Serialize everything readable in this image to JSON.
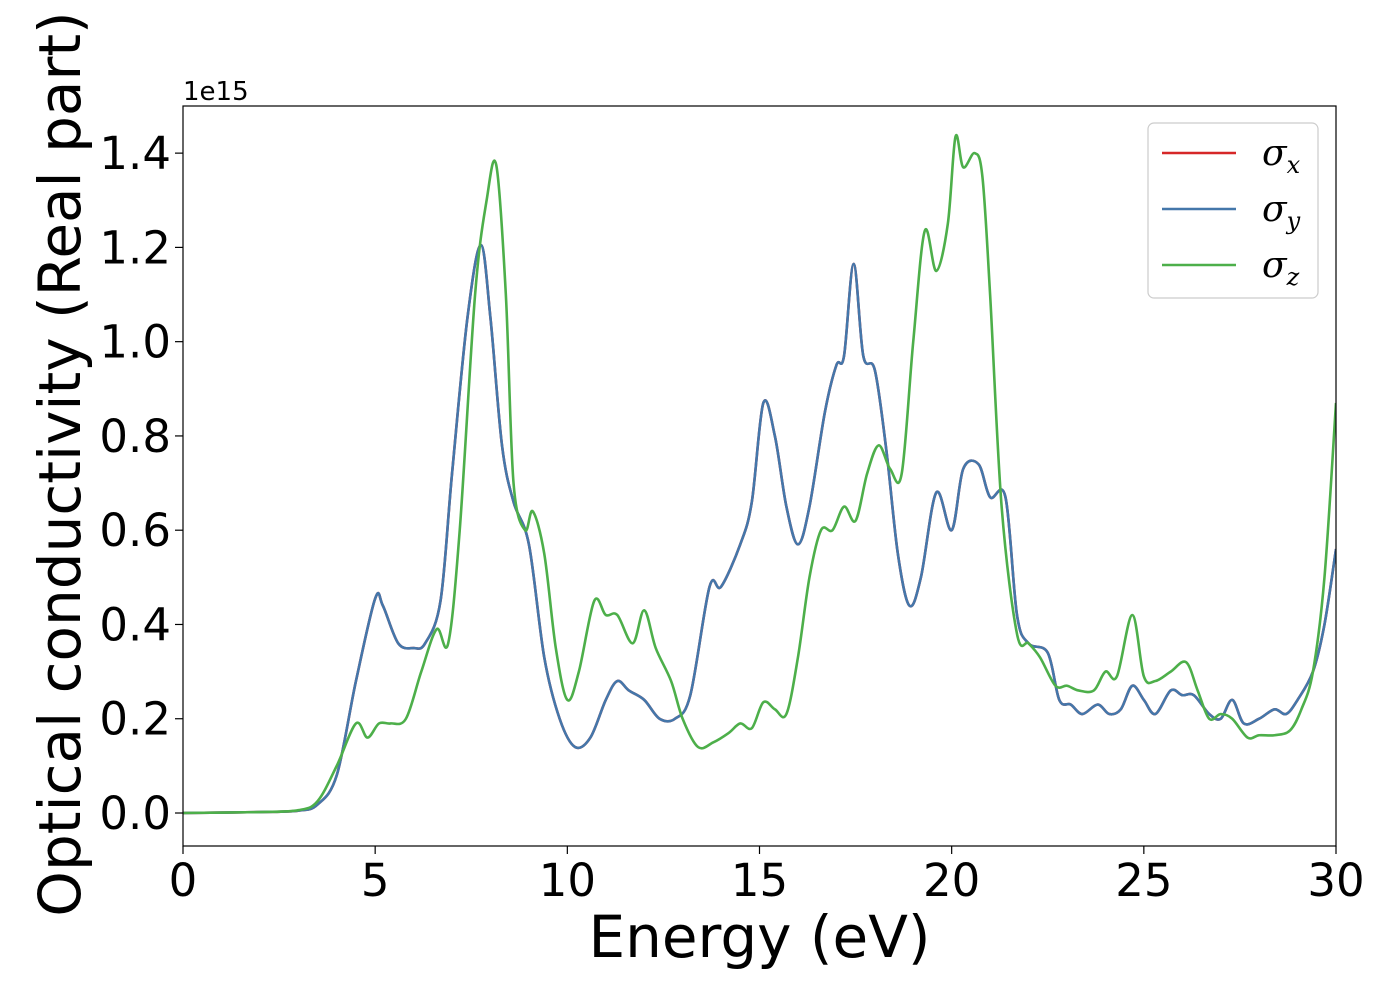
{
  "chart_data": {
    "type": "line",
    "title": "",
    "xlabel": "Energy (eV)",
    "ylabel": "Optical conductivity (Real part)",
    "y_offset_label": "1e15",
    "xlim": [
      0,
      30
    ],
    "ylim": [
      -0.07,
      1.5
    ],
    "xticks": [
      0,
      5,
      10,
      15,
      20,
      25,
      30
    ],
    "yticks": [
      0.0,
      0.2,
      0.4,
      0.6,
      0.8,
      1.0,
      1.2,
      1.4
    ],
    "xtick_labels": [
      "0",
      "5",
      "10",
      "15",
      "20",
      "25",
      "30"
    ],
    "ytick_labels": [
      "0.0",
      "0.2",
      "0.4",
      "0.6",
      "0.8",
      "1.0",
      "1.2",
      "1.4"
    ],
    "grid": false,
    "legend_position": "top-right",
    "series": [
      {
        "name": "σx",
        "symbol": "σ",
        "subscript": "x",
        "color": "#d62728",
        "x": [
          0,
          2,
          3,
          3.5,
          4.0,
          4.5,
          5.0,
          5.2,
          5.6,
          6.0,
          6.3,
          6.7,
          7.0,
          7.4,
          7.75,
          8.0,
          8.3,
          8.6,
          9.0,
          9.4,
          9.8,
          10.2,
          10.6,
          11.0,
          11.3,
          11.6,
          12.0,
          12.4,
          12.8,
          13.2,
          13.7,
          14.0,
          14.5,
          14.8,
          15.1,
          15.4,
          15.7,
          16.0,
          16.3,
          16.7,
          17.0,
          17.2,
          17.45,
          17.7,
          18.0,
          18.3,
          18.6,
          18.9,
          19.2,
          19.6,
          20.0,
          20.3,
          20.7,
          21.0,
          21.4,
          21.7,
          22.0,
          22.5,
          22.8,
          23.1,
          23.4,
          23.8,
          24.1,
          24.4,
          24.7,
          25.0,
          25.3,
          25.7,
          26.0,
          26.3,
          26.7,
          27.0,
          27.3,
          27.6,
          28.0,
          28.4,
          28.7,
          29.0,
          29.4,
          29.7,
          30.0
        ],
        "y": [
          0,
          0.002,
          0.005,
          0.018,
          0.08,
          0.28,
          0.455,
          0.44,
          0.36,
          0.35,
          0.36,
          0.45,
          0.72,
          1.05,
          1.205,
          1.05,
          0.78,
          0.66,
          0.57,
          0.33,
          0.2,
          0.14,
          0.16,
          0.24,
          0.28,
          0.26,
          0.24,
          0.2,
          0.2,
          0.25,
          0.48,
          0.48,
          0.57,
          0.66,
          0.87,
          0.8,
          0.65,
          0.57,
          0.65,
          0.85,
          0.95,
          0.97,
          1.165,
          0.97,
          0.94,
          0.77,
          0.55,
          0.44,
          0.5,
          0.68,
          0.6,
          0.73,
          0.74,
          0.67,
          0.67,
          0.42,
          0.36,
          0.34,
          0.24,
          0.23,
          0.21,
          0.23,
          0.21,
          0.22,
          0.27,
          0.24,
          0.21,
          0.26,
          0.25,
          0.25,
          0.21,
          0.2,
          0.24,
          0.19,
          0.2,
          0.22,
          0.21,
          0.24,
          0.3,
          0.4,
          0.56
        ]
      },
      {
        "name": "σy",
        "symbol": "σ",
        "subscript": "y",
        "color": "#4477aa",
        "x": [
          0,
          2,
          3,
          3.5,
          4.0,
          4.5,
          5.0,
          5.2,
          5.6,
          6.0,
          6.3,
          6.7,
          7.0,
          7.4,
          7.75,
          8.0,
          8.3,
          8.6,
          9.0,
          9.4,
          9.8,
          10.2,
          10.6,
          11.0,
          11.3,
          11.6,
          12.0,
          12.4,
          12.8,
          13.2,
          13.7,
          14.0,
          14.5,
          14.8,
          15.1,
          15.4,
          15.7,
          16.0,
          16.3,
          16.7,
          17.0,
          17.2,
          17.45,
          17.7,
          18.0,
          18.3,
          18.6,
          18.9,
          19.2,
          19.6,
          20.0,
          20.3,
          20.7,
          21.0,
          21.4,
          21.7,
          22.0,
          22.5,
          22.8,
          23.1,
          23.4,
          23.8,
          24.1,
          24.4,
          24.7,
          25.0,
          25.3,
          25.7,
          26.0,
          26.3,
          26.7,
          27.0,
          27.3,
          27.6,
          28.0,
          28.4,
          28.7,
          29.0,
          29.4,
          29.7,
          30.0
        ],
        "y": [
          0,
          0.002,
          0.005,
          0.018,
          0.08,
          0.28,
          0.455,
          0.44,
          0.36,
          0.35,
          0.36,
          0.45,
          0.72,
          1.05,
          1.205,
          1.05,
          0.78,
          0.66,
          0.57,
          0.33,
          0.2,
          0.14,
          0.16,
          0.24,
          0.28,
          0.26,
          0.24,
          0.2,
          0.2,
          0.25,
          0.48,
          0.48,
          0.57,
          0.66,
          0.87,
          0.8,
          0.65,
          0.57,
          0.65,
          0.85,
          0.95,
          0.97,
          1.165,
          0.97,
          0.94,
          0.77,
          0.55,
          0.44,
          0.5,
          0.68,
          0.6,
          0.73,
          0.74,
          0.67,
          0.67,
          0.42,
          0.36,
          0.34,
          0.24,
          0.23,
          0.21,
          0.23,
          0.21,
          0.22,
          0.27,
          0.24,
          0.21,
          0.26,
          0.25,
          0.25,
          0.21,
          0.2,
          0.24,
          0.19,
          0.2,
          0.22,
          0.21,
          0.24,
          0.3,
          0.4,
          0.56
        ]
      },
      {
        "name": "σz",
        "symbol": "σ",
        "subscript": "z",
        "color": "#4daf4a",
        "x": [
          0,
          2,
          3,
          3.5,
          4.0,
          4.5,
          4.8,
          5.1,
          5.4,
          5.8,
          6.2,
          6.6,
          6.9,
          7.2,
          7.6,
          7.9,
          8.15,
          8.4,
          8.6,
          8.9,
          9.1,
          9.4,
          9.7,
          10.0,
          10.3,
          10.7,
          11.0,
          11.3,
          11.7,
          12.0,
          12.3,
          12.7,
          13.0,
          13.4,
          13.8,
          14.2,
          14.5,
          14.8,
          15.1,
          15.4,
          15.7,
          16.0,
          16.3,
          16.6,
          16.9,
          17.2,
          17.5,
          17.8,
          18.1,
          18.4,
          18.7,
          19.0,
          19.3,
          19.6,
          19.9,
          20.1,
          20.3,
          20.6,
          20.8,
          21.0,
          21.3,
          21.7,
          22.0,
          22.3,
          22.7,
          23.0,
          23.3,
          23.7,
          24.0,
          24.3,
          24.7,
          25.0,
          25.3,
          25.7,
          26.1,
          26.4,
          26.7,
          27.0,
          27.3,
          27.7,
          28.0,
          28.4,
          28.8,
          29.1,
          29.4,
          29.7,
          30.0
        ],
        "y": [
          0,
          0.002,
          0.006,
          0.025,
          0.1,
          0.19,
          0.16,
          0.19,
          0.19,
          0.2,
          0.3,
          0.39,
          0.36,
          0.6,
          1.1,
          1.3,
          1.375,
          1.1,
          0.7,
          0.6,
          0.64,
          0.55,
          0.35,
          0.24,
          0.3,
          0.45,
          0.42,
          0.42,
          0.36,
          0.43,
          0.35,
          0.28,
          0.2,
          0.14,
          0.15,
          0.17,
          0.19,
          0.18,
          0.235,
          0.22,
          0.21,
          0.33,
          0.5,
          0.6,
          0.6,
          0.65,
          0.62,
          0.72,
          0.78,
          0.73,
          0.72,
          1.0,
          1.235,
          1.15,
          1.25,
          1.435,
          1.37,
          1.4,
          1.35,
          1.1,
          0.65,
          0.38,
          0.36,
          0.33,
          0.27,
          0.27,
          0.26,
          0.26,
          0.3,
          0.29,
          0.42,
          0.29,
          0.28,
          0.3,
          0.32,
          0.26,
          0.2,
          0.21,
          0.2,
          0.16,
          0.165,
          0.165,
          0.175,
          0.22,
          0.3,
          0.5,
          0.87
        ]
      }
    ]
  }
}
